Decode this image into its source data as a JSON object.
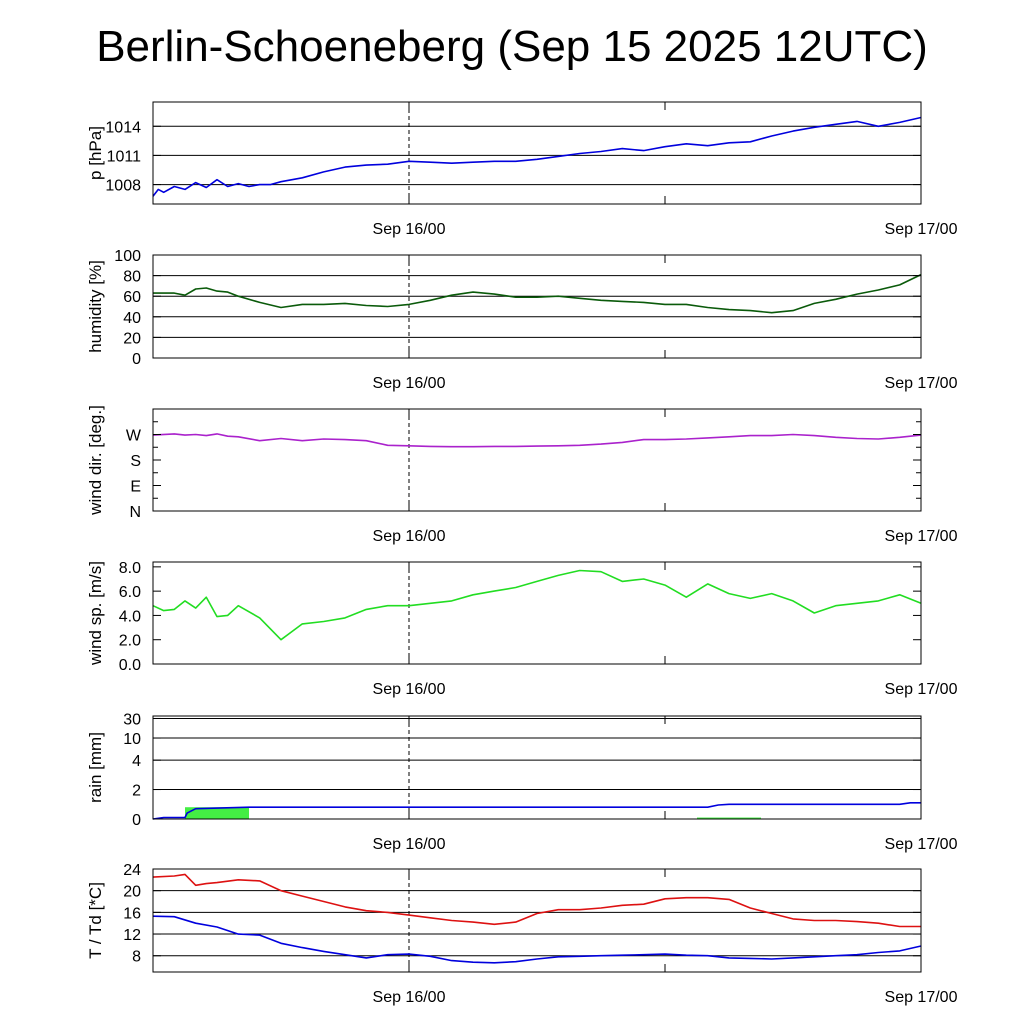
{
  "title": "Berlin-Schoeneberg (Sep 15 2025 12UTC)",
  "chart_data": [
    {
      "id": "pressure",
      "type": "line",
      "ylabel": "p [hPa]",
      "ylim": [
        1006,
        1016.5
      ],
      "yticks": [
        1008,
        1011,
        1014
      ],
      "yticklabels": [
        "1008",
        "1011",
        "1014"
      ],
      "gridlines": [
        1008,
        1011,
        1014
      ],
      "xticklabels": [
        "Sep 16/00",
        "Sep 17/00"
      ],
      "series": [
        {
          "color": "#0000dd",
          "x": [
            0,
            0.25,
            0.5,
            1,
            1.5,
            2,
            2.5,
            3,
            3.5,
            4,
            4.5,
            5,
            5.5,
            6,
            7,
            8,
            9,
            10,
            11,
            12,
            13,
            14,
            15,
            16,
            17,
            18,
            19,
            20,
            21,
            22,
            23,
            24,
            25,
            26,
            27,
            28,
            29,
            30,
            31,
            32,
            33,
            34,
            35,
            36
          ],
          "values": [
            1006.8,
            1007.5,
            1007.2,
            1007.8,
            1007.5,
            1008.2,
            1007.7,
            1008.5,
            1007.8,
            1008.1,
            1007.8,
            1008.0,
            1008.0,
            1008.3,
            1008.7,
            1009.3,
            1009.8,
            1010.0,
            1010.1,
            1010.4,
            1010.3,
            1010.2,
            1010.3,
            1010.4,
            1010.4,
            1010.6,
            1010.9,
            1011.2,
            1011.4,
            1011.7,
            1011.5,
            1011.9,
            1012.2,
            1012.0,
            1012.3,
            1012.4,
            1013.0,
            1013.5,
            1013.9,
            1014.2,
            1014.5,
            1014.0,
            1014.4,
            1014.9
          ]
        }
      ]
    },
    {
      "id": "humidity",
      "type": "line",
      "ylabel": "humidity [%]",
      "ylim": [
        0,
        100
      ],
      "yticks": [
        0,
        20,
        40,
        60,
        80,
        100
      ],
      "yticklabels": [
        "0",
        "20",
        "40",
        "60",
        "80",
        "100"
      ],
      "gridlines": [
        20,
        40,
        60,
        80
      ],
      "xticklabels": [
        "Sep 16/00",
        "Sep 17/00"
      ],
      "series": [
        {
          "color": "#0a5a0a",
          "x": [
            0,
            1,
            1.5,
            2,
            2.5,
            3,
            3.5,
            4,
            5,
            6,
            7,
            8,
            9,
            10,
            11,
            12,
            13,
            14,
            15,
            16,
            17,
            18,
            19,
            20,
            21,
            22,
            23,
            24,
            25,
            26,
            27,
            28,
            29,
            30,
            31,
            32,
            33,
            34,
            35,
            36
          ],
          "values": [
            63,
            63,
            61,
            67,
            68,
            65,
            64,
            60,
            54,
            49,
            52,
            52,
            53,
            51,
            50,
            52,
            56,
            61,
            64,
            62,
            59,
            59,
            60,
            58,
            56,
            55,
            54,
            52,
            52,
            49,
            47,
            46,
            44,
            46,
            53,
            57,
            62,
            66,
            71,
            81
          ]
        }
      ]
    },
    {
      "id": "wind-direction",
      "type": "line",
      "ylabel": "wind dir. [deg.]",
      "ylim": [
        0,
        360
      ],
      "yticks": [
        0,
        90,
        180,
        270
      ],
      "yticklabels": [
        "N",
        "E",
        "S",
        "W"
      ],
      "gridlines": [],
      "minor_ticks": [
        45,
        135,
        225,
        315
      ],
      "xticklabels": [
        "Sep 16/00",
        "Sep 17/00"
      ],
      "series": [
        {
          "color": "#aa22cc",
          "x": [
            0,
            1,
            1.5,
            2,
            2.5,
            3,
            3.5,
            4,
            5,
            6,
            7,
            8,
            9,
            10,
            11,
            12,
            13,
            14,
            15,
            16,
            17,
            18,
            19,
            20,
            21,
            22,
            23,
            24,
            25,
            26,
            27,
            28,
            29,
            30,
            31,
            32,
            33,
            34,
            35,
            36
          ],
          "values": [
            268,
            272,
            268,
            270,
            266,
            272,
            264,
            262,
            248,
            256,
            248,
            254,
            252,
            248,
            232,
            230,
            228,
            227,
            227,
            228,
            228,
            229,
            230,
            232,
            236,
            242,
            252,
            252,
            254,
            258,
            262,
            266,
            266,
            270,
            266,
            260,
            256,
            254,
            260,
            268
          ]
        }
      ]
    },
    {
      "id": "wind-speed",
      "type": "line",
      "ylabel": "wind sp. [m/s]",
      "ylim": [
        0,
        8.4
      ],
      "yticks": [
        0,
        2,
        4,
        6,
        8
      ],
      "yticklabels": [
        "0.0",
        "2.0",
        "4.0",
        "6.0",
        "8.0"
      ],
      "gridlines": [],
      "xticklabels": [
        "Sep 16/00",
        "Sep 17/00"
      ],
      "series": [
        {
          "color": "#22dd22",
          "x": [
            0,
            0.5,
            1,
            1.5,
            2,
            2.5,
            3,
            3.5,
            4,
            5,
            6,
            7,
            8,
            9,
            10,
            11,
            12,
            13,
            14,
            15,
            16,
            17,
            18,
            19,
            20,
            21,
            22,
            23,
            24,
            25,
            26,
            27,
            28,
            29,
            30,
            31,
            32,
            33,
            34,
            35,
            36
          ],
          "values": [
            4.8,
            4.4,
            4.5,
            5.2,
            4.6,
            5.5,
            3.9,
            4.0,
            4.8,
            3.8,
            2.0,
            3.3,
            3.5,
            3.8,
            4.5,
            4.8,
            4.8,
            5.0,
            5.2,
            5.7,
            6.0,
            6.3,
            6.8,
            7.3,
            7.7,
            7.6,
            6.8,
            7.0,
            6.5,
            5.5,
            6.6,
            5.8,
            5.4,
            5.8,
            5.2,
            4.2,
            4.8,
            5.0,
            5.2,
            5.7,
            5.0
          ]
        }
      ]
    },
    {
      "id": "rain",
      "type": "area",
      "ylabel": "rain [mm]",
      "ylim": [
        0,
        35
      ],
      "yticks": [
        0,
        2,
        4,
        10,
        30
      ],
      "yticklabels": [
        "0",
        "2",
        "4",
        "10",
        "30"
      ],
      "y_scale": "nonlinear",
      "y_scale_map": {
        "x": [
          0,
          2,
          4,
          10,
          30,
          35
        ],
        "y": [
          0,
          0.286,
          0.571,
          0.786,
          0.976,
          1.0
        ]
      },
      "gridlines": [
        2,
        4,
        10,
        30
      ],
      "xticklabels": [
        "Sep 16/00",
        "Sep 17/00"
      ],
      "bars": [
        {
          "color": "#44ee44",
          "x0": 1.5,
          "x1": 4.5,
          "value": 0.8
        },
        {
          "color": "#44ee44",
          "x0": 25.5,
          "x1": 28.5,
          "value": 0.1
        }
      ],
      "series": [
        {
          "color": "#0000dd",
          "x": [
            0,
            0.5,
            1.5,
            1.6,
            2.0,
            4.5,
            26,
            26.5,
            27,
            35,
            35.5,
            36
          ],
          "values": [
            0,
            0.1,
            0.1,
            0.4,
            0.7,
            0.8,
            0.8,
            0.95,
            1.0,
            1.0,
            1.1,
            1.1
          ]
        }
      ]
    },
    {
      "id": "temperature",
      "type": "line",
      "ylabel": "T / Td [*C]",
      "ylim": [
        5,
        24
      ],
      "yticks": [
        8,
        12,
        16,
        20,
        24
      ],
      "yticklabels": [
        "8",
        "12",
        "16",
        "20",
        "24"
      ],
      "gridlines": [
        8,
        12,
        16,
        20,
        24
      ],
      "xticklabels": [
        "Sep 16/00",
        "Sep 17/00"
      ],
      "series": [
        {
          "color": "#dd1111",
          "x": [
            0,
            1,
            1.5,
            2,
            2.5,
            3,
            4,
            5,
            6,
            7,
            8,
            9,
            10,
            11,
            12,
            13,
            14,
            15,
            16,
            17,
            18,
            19,
            20,
            21,
            22,
            23,
            24,
            25,
            26,
            27,
            28,
            29,
            30,
            31,
            32,
            33,
            34,
            35,
            36
          ],
          "values": [
            22.5,
            22.7,
            23.0,
            21.0,
            21.3,
            21.5,
            22.0,
            21.8,
            20.0,
            19.0,
            18.0,
            17.0,
            16.3,
            16.0,
            15.5,
            15.0,
            14.5,
            14.2,
            13.8,
            14.2,
            15.8,
            16.5,
            16.5,
            16.8,
            17.3,
            17.5,
            18.5,
            18.7,
            18.7,
            18.4,
            16.8,
            15.8,
            14.8,
            14.5,
            14.5,
            14.3,
            14.0,
            13.4,
            13.4
          ]
        },
        {
          "color": "#0000dd",
          "x": [
            0,
            1,
            2,
            3,
            4,
            5,
            6,
            7,
            8,
            9,
            10,
            11,
            12,
            13,
            14,
            15,
            16,
            17,
            18,
            19,
            20,
            21,
            22,
            23,
            24,
            25,
            26,
            27,
            28,
            29,
            30,
            31,
            32,
            33,
            34,
            35,
            36
          ],
          "values": [
            15.3,
            15.2,
            14.0,
            13.3,
            12.0,
            11.8,
            10.3,
            9.5,
            8.8,
            8.2,
            7.6,
            8.2,
            8.3,
            7.9,
            7.1,
            6.8,
            6.7,
            6.9,
            7.4,
            7.8,
            7.9,
            8.0,
            8.1,
            8.2,
            8.3,
            8.1,
            8.0,
            7.6,
            7.5,
            7.4,
            7.6,
            7.8,
            8.0,
            8.2,
            8.6,
            8.9,
            9.8
          ]
        }
      ]
    }
  ],
  "x_axis": {
    "x_min": 0,
    "x_max": 36,
    "marker_x": 12,
    "major_ticks": [
      12,
      36
    ],
    "minor_ticks": [
      0,
      24
    ],
    "tick_labels": [
      "Sep 16/00",
      "Sep 17/00"
    ]
  }
}
